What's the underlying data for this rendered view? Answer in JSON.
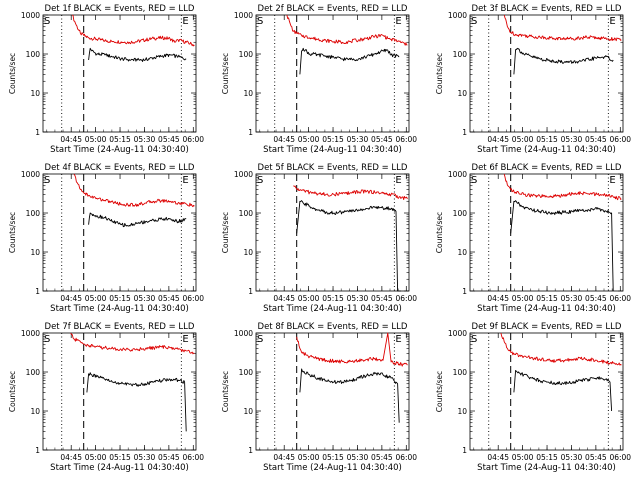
{
  "figure": {
    "panels": [
      {
        "title": "Det 1f BLACK = Events, RED = LLD",
        "marker_s": "S",
        "marker_e": "E"
      },
      {
        "title": "Det 2f BLACK = Events, RED = LLD",
        "marker_s": "S",
        "marker_e": "E"
      },
      {
        "title": "Det 3f BLACK = Events, RED = LLD",
        "marker_s": "S",
        "marker_e": "E"
      },
      {
        "title": "Det 4f BLACK = Events, RED = LLD",
        "marker_s": "S",
        "marker_e": "E"
      },
      {
        "title": "Det 5f BLACK = Events, RED = LLD",
        "marker_s": "S",
        "marker_e": "E"
      },
      {
        "title": "Det 6f BLACK = Events, RED = LLD",
        "marker_s": "S",
        "marker_e": "E"
      },
      {
        "title": "Det 7f BLACK = Events, RED = LLD",
        "marker_s": "S",
        "marker_e": "E"
      },
      {
        "title": "Det 8f BLACK = Events, RED = LLD",
        "marker_s": "S",
        "marker_e": "E"
      },
      {
        "title": "Det 9f BLACK = Events, RED = LLD",
        "marker_s": "S",
        "marker_e": "E"
      }
    ],
    "xlabel": "Start Time (24-Aug-11 04:30:40)",
    "ylabel": "Counts/sec",
    "xticks": [
      "04:45",
      "05:00",
      "05:15",
      "05:30",
      "05:45",
      "06:00"
    ],
    "yticks": [
      "1",
      "10",
      "100",
      "1000"
    ]
  },
  "chart_data": [
    {
      "type": "line",
      "title": "Det 1f BLACK = Events, RED = LLD",
      "xlabel": "Start Time (24-Aug-11 04:30:40)",
      "ylabel": "Counts/sec",
      "xlim": [
        -3,
        91
      ],
      "ylim": [
        1,
        1000
      ],
      "yscale": "log",
      "vlines_dotted": [
        8.5,
        82
      ],
      "vline_dashed": 22,
      "series": [
        {
          "name": "LLD",
          "color": "#dd0000",
          "x": [
            15,
            17,
            20,
            22,
            25,
            30,
            35,
            40,
            45,
            50,
            55,
            60,
            65,
            70,
            75,
            78,
            80,
            85,
            90
          ],
          "y": [
            1000,
            600,
            340,
            300,
            260,
            240,
            220,
            210,
            205,
            200,
            210,
            230,
            250,
            260,
            250,
            200,
            230,
            200,
            170
          ]
        },
        {
          "name": "Events",
          "color": "#000000",
          "x": [
            25,
            26,
            27,
            30,
            35,
            40,
            45,
            50,
            55,
            60,
            65,
            70,
            75,
            80,
            85
          ],
          "y": [
            70,
            140,
            120,
            100,
            95,
            85,
            75,
            72,
            70,
            72,
            80,
            88,
            95,
            85,
            75
          ]
        }
      ],
      "gaps": []
    },
    {
      "type": "line",
      "title": "Det 2f BLACK = Events, RED = LLD",
      "xlabel": "Start Time (24-Aug-11 04:30:40)",
      "ylabel": "Counts/sec",
      "xlim": [
        -3,
        91
      ],
      "ylim": [
        1,
        1000
      ],
      "yscale": "log",
      "vlines_dotted": [
        8.5,
        82
      ],
      "vline_dashed": 22,
      "series": [
        {
          "name": "LLD",
          "color": "#dd0000",
          "x": [
            16,
            18,
            20,
            22,
            25,
            30,
            35,
            40,
            45,
            50,
            55,
            60,
            65,
            70,
            75,
            78,
            80,
            85,
            90
          ],
          "y": [
            1000,
            600,
            380,
            340,
            300,
            260,
            240,
            220,
            210,
            200,
            210,
            230,
            250,
            280,
            300,
            250,
            240,
            210,
            170
          ]
        },
        {
          "name": "Events",
          "color": "#000000",
          "x": [
            24,
            25,
            26,
            30,
            35,
            40,
            45,
            50,
            55,
            60,
            65,
            70,
            75,
            78,
            80,
            85
          ],
          "y": [
            30,
            120,
            140,
            100,
            95,
            90,
            80,
            75,
            72,
            75,
            85,
            100,
            120,
            125,
            95,
            85
          ]
        }
      ],
      "gaps": []
    },
    {
      "type": "line",
      "title": "Det 3f BLACK = Events, RED = LLD",
      "xlabel": "Start Time (24-Aug-11 04:30:40)",
      "ylabel": "Counts/sec",
      "xlim": [
        -3,
        91
      ],
      "ylim": [
        1,
        1000
      ],
      "yscale": "log",
      "vlines_dotted": [
        8.5,
        82
      ],
      "vline_dashed": 22,
      "series": [
        {
          "name": "LLD",
          "color": "#dd0000",
          "x": [
            18,
            20,
            22,
            25,
            30,
            35,
            40,
            45,
            50,
            55,
            60,
            65,
            70,
            75,
            80,
            85,
            90
          ],
          "y": [
            1000,
            500,
            360,
            320,
            300,
            280,
            270,
            260,
            250,
            245,
            250,
            260,
            270,
            260,
            250,
            240,
            230
          ]
        },
        {
          "name": "Events",
          "color": "#000000",
          "x": [
            24,
            25,
            26,
            30,
            35,
            40,
            45,
            50,
            55,
            60,
            65,
            70,
            75,
            80,
            85
          ],
          "y": [
            30,
            130,
            140,
            100,
            85,
            75,
            68,
            65,
            62,
            62,
            65,
            72,
            80,
            85,
            70
          ]
        }
      ],
      "gaps": []
    },
    {
      "type": "line",
      "title": "Det 4f BLACK = Events, RED = LLD",
      "xlabel": "Start Time (24-Aug-11 04:30:40)",
      "ylabel": "Counts/sec",
      "xlim": [
        -3,
        91
      ],
      "ylim": [
        1,
        1000
      ],
      "yscale": "log",
      "vlines_dotted": [
        8.5,
        82
      ],
      "vline_dashed": 22,
      "series": [
        {
          "name": "LLD",
          "color": "#dd0000",
          "x": [
            16,
            18,
            20,
            22,
            25,
            30,
            35,
            40,
            45,
            50,
            55,
            60,
            65,
            70,
            75,
            80,
            85,
            90
          ],
          "y": [
            1000,
            600,
            400,
            330,
            280,
            240,
            210,
            190,
            170,
            160,
            165,
            180,
            200,
            210,
            200,
            180,
            170,
            150
          ]
        },
        {
          "name": "Events",
          "color": "#000000",
          "x": [
            25,
            26,
            27,
            30,
            35,
            40,
            45,
            50,
            55,
            60,
            65,
            70,
            75,
            80,
            85
          ],
          "y": [
            50,
            100,
            95,
            85,
            75,
            60,
            50,
            48,
            55,
            60,
            65,
            70,
            70,
            60,
            70
          ]
        }
      ],
      "gaps": []
    },
    {
      "type": "line",
      "title": "Det 5f BLACK = Events, RED = LLD",
      "xlabel": "Start Time (24-Aug-11 04:30:40)",
      "ylabel": "Counts/sec",
      "xlim": [
        -3,
        91
      ],
      "ylim": [
        1,
        1000
      ],
      "yscale": "log",
      "vlines_dotted": [
        8.5,
        82
      ],
      "vline_dashed": 22,
      "series": [
        {
          "name": "LLD",
          "color": "#dd0000",
          "x": [
            20,
            22,
            25,
            30,
            35,
            40,
            45,
            50,
            55,
            60,
            65,
            70,
            75,
            80,
            85,
            90
          ],
          "y": [
            500,
            420,
            380,
            340,
            310,
            300,
            300,
            310,
            330,
            350,
            360,
            340,
            320,
            300,
            260,
            230
          ]
        },
        {
          "name": "Events",
          "color": "#000000",
          "x": [
            22,
            24,
            26,
            30,
            35,
            40,
            45,
            50,
            55,
            60,
            65,
            70,
            75,
            80,
            83,
            84,
            85,
            86
          ],
          "y": [
            30,
            200,
            180,
            150,
            120,
            105,
            100,
            105,
            110,
            120,
            130,
            140,
            135,
            130,
            110,
            1,
            1,
            1
          ]
        }
      ],
      "gaps": []
    },
    {
      "type": "line",
      "title": "Det 6f BLACK = Events, RED = LLD",
      "xlabel": "Start Time (24-Aug-11 04:30:40)",
      "ylabel": "Counts/sec",
      "xlim": [
        -3,
        91
      ],
      "ylim": [
        1,
        1000
      ],
      "yscale": "log",
      "vlines_dotted": [
        8.5,
        82
      ],
      "vline_dashed": 22,
      "series": [
        {
          "name": "LLD",
          "color": "#dd0000",
          "x": [
            18,
            20,
            22,
            25,
            30,
            35,
            40,
            45,
            50,
            55,
            60,
            65,
            70,
            75,
            80,
            85,
            90
          ],
          "y": [
            1000,
            520,
            400,
            340,
            300,
            280,
            270,
            260,
            270,
            290,
            310,
            320,
            310,
            300,
            290,
            260,
            230
          ]
        },
        {
          "name": "Events",
          "color": "#000000",
          "x": [
            22,
            24,
            26,
            30,
            35,
            40,
            45,
            50,
            55,
            60,
            65,
            70,
            75,
            80,
            84,
            85
          ],
          "y": [
            30,
            200,
            180,
            140,
            120,
            110,
            100,
            100,
            105,
            110,
            115,
            120,
            125,
            115,
            100,
            1
          ]
        }
      ],
      "gaps": []
    },
    {
      "type": "line",
      "title": "Det 7f BLACK = Events, RED = LLD",
      "xlabel": "Start Time (24-Aug-11 04:30:40)",
      "ylabel": "Counts/sec",
      "xlim": [
        -3,
        91
      ],
      "ylim": [
        1,
        1000
      ],
      "yscale": "log",
      "vlines_dotted": [
        8.5,
        82
      ],
      "vline_dashed": 22,
      "series": [
        {
          "name": "LLD",
          "color": "#dd0000",
          "x": [
            14,
            16,
            20,
            22,
            25,
            30,
            35,
            40,
            45,
            50,
            55,
            60,
            65,
            70,
            75,
            80,
            85,
            90
          ],
          "y": [
            1000,
            700,
            600,
            520,
            480,
            450,
            420,
            400,
            380,
            370,
            380,
            400,
            420,
            440,
            420,
            380,
            350,
            300
          ]
        },
        {
          "name": "Events",
          "color": "#000000",
          "x": [
            24,
            25,
            27,
            30,
            35,
            40,
            45,
            50,
            55,
            60,
            65,
            70,
            75,
            80,
            84,
            85
          ],
          "y": [
            30,
            90,
            85,
            75,
            65,
            55,
            50,
            48,
            47,
            50,
            55,
            60,
            65,
            62,
            55,
            3
          ]
        }
      ],
      "gaps": []
    },
    {
      "type": "line",
      "title": "Det 8f BLACK = Events, RED = LLD",
      "xlabel": "Start Time (24-Aug-11 04:30:40)",
      "ylabel": "Counts/sec",
      "xlim": [
        -3,
        91
      ],
      "ylim": [
        1,
        1000
      ],
      "yscale": "log",
      "vlines_dotted": [
        8.5,
        82
      ],
      "vline_dashed": 22,
      "series": [
        {
          "name": "LLD",
          "color": "#dd0000",
          "x": [
            22,
            24,
            25,
            28,
            30,
            35,
            40,
            45,
            50,
            55,
            60,
            65,
            70,
            75,
            78,
            80,
            82,
            85,
            90
          ],
          "y": [
            800,
            400,
            320,
            270,
            250,
            220,
            200,
            190,
            185,
            190,
            200,
            210,
            220,
            200,
            1000,
            180,
            170,
            160,
            150
          ]
        },
        {
          "name": "Events",
          "color": "#000000",
          "x": [
            24,
            25,
            26,
            30,
            35,
            40,
            45,
            50,
            55,
            60,
            65,
            70,
            75,
            80,
            84,
            85
          ],
          "y": [
            30,
            120,
            100,
            85,
            70,
            60,
            55,
            55,
            60,
            70,
            80,
            90,
            85,
            70,
            50,
            5
          ]
        }
      ],
      "gaps": []
    },
    {
      "type": "line",
      "title": "Det 9f BLACK = Events, RED = LLD",
      "xlabel": "Start Time (24-Aug-11 04:30:40)",
      "ylabel": "Counts/sec",
      "xlim": [
        -3,
        91
      ],
      "ylim": [
        1,
        1000
      ],
      "yscale": "log",
      "vlines_dotted": [
        8.5,
        82
      ],
      "vline_dashed": 22,
      "series": [
        {
          "name": "LLD",
          "color": "#dd0000",
          "x": [
            16,
            18,
            20,
            22,
            25,
            30,
            35,
            40,
            45,
            50,
            55,
            60,
            65,
            70,
            75,
            80,
            85,
            90
          ],
          "y": [
            1000,
            600,
            400,
            320,
            280,
            250,
            230,
            210,
            200,
            195,
            200,
            210,
            220,
            210,
            200,
            180,
            170,
            150
          ]
        },
        {
          "name": "Events",
          "color": "#000000",
          "x": [
            24,
            25,
            26,
            30,
            35,
            40,
            45,
            50,
            55,
            60,
            65,
            70,
            75,
            80,
            83,
            84
          ],
          "y": [
            30,
            110,
            100,
            85,
            70,
            60,
            55,
            52,
            52,
            55,
            60,
            65,
            70,
            65,
            55,
            10
          ]
        }
      ],
      "gaps": []
    }
  ]
}
